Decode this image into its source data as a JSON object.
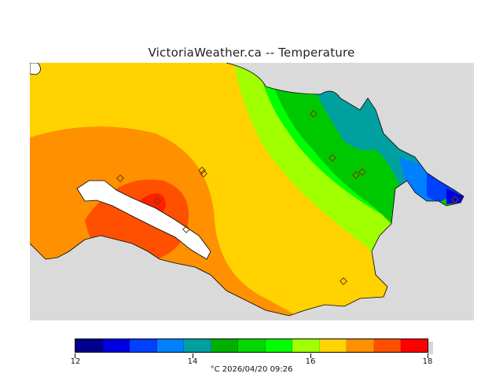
{
  "title": "VictoriaWeather.ca -- Temperature",
  "legend": {
    "colors": [
      "#00008b",
      "#0000e0",
      "#0040ff",
      "#0080ff",
      "#00a0a0",
      "#00b000",
      "#00d800",
      "#00ff00",
      "#a0ff00",
      "#ffd200",
      "#ff9000",
      "#ff5000",
      "#ff0000"
    ],
    "ticks": [
      "12",
      "14",
      "16",
      "18"
    ]
  },
  "footer": "°C  2026/04/20 09:26",
  "colors": {
    "land_bg": "#dadada",
    "water": "#ffffff"
  },
  "stations": 11
}
